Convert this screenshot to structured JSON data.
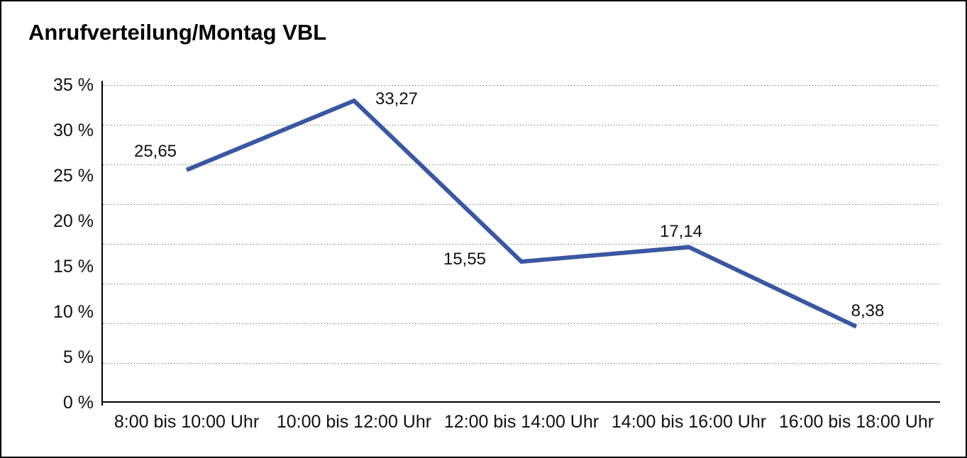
{
  "chart_data": {
    "type": "line",
    "title": "Anrufverteilung/Montag VBL",
    "categories": [
      "8:00 bis 10:00 Uhr",
      "10:00 bis 12:00 Uhr",
      "12:00 bis 14:00 Uhr",
      "14:00 bis 16:00 Uhr",
      "16:00 bis 18:00 Uhr"
    ],
    "values": [
      25.65,
      33.27,
      15.55,
      17.14,
      8.38
    ],
    "value_labels": [
      "25,65",
      "33,27",
      "15,55",
      "17,14",
      "8,38"
    ],
    "y_tick_labels": [
      "35 %",
      "30 %",
      "25 %",
      "20 %",
      "15 %",
      "10 %",
      "5 %",
      "0 %"
    ],
    "ylabel": "",
    "xlabel": "",
    "ylim": [
      0,
      35
    ],
    "gridlines_total": 9,
    "grid": "horizontal dotted, bottom line solid axis",
    "legend_position": "none",
    "line_color": "#3a57a2",
    "axis_color": "#000000",
    "background_color": "#ffffff"
  }
}
